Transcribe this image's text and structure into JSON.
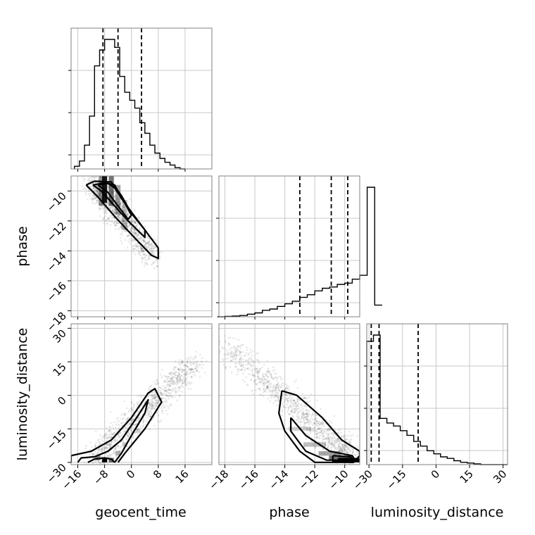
{
  "chart_data": {
    "type": "corner",
    "parameters": [
      "geocent_time",
      "phase",
      "luminosity_distance"
    ],
    "ranges": {
      "geocent_time": [
        -18,
        24
      ],
      "phase": [
        -18.4,
        -9.0
      ],
      "luminosity_distance": [
        -31,
        32
      ]
    },
    "ticks": {
      "geocent_time": [
        -16,
        -8,
        0,
        8,
        16
      ],
      "phase": [
        -18,
        -16,
        -14,
        -12,
        -10
      ],
      "luminosity_distance": [
        -30,
        -15,
        0,
        15,
        30
      ]
    },
    "tick_labels": {
      "geocent_time": [
        "−16",
        "−8",
        "0",
        "8",
        "16"
      ],
      "phase": [
        "−18",
        "−16",
        "−14",
        "−12",
        "−10"
      ],
      "luminosity_distance": [
        "−30",
        "−15",
        "0",
        "15",
        "30"
      ]
    },
    "quantiles": {
      "geocent_time": [
        -8.5,
        -4.0,
        3.0
      ],
      "phase": [
        -13.0,
        -10.9,
        -9.8
      ],
      "luminosity_distance": [
        -29.0,
        -25.5,
        -8.0
      ]
    },
    "histograms": {
      "geocent_time": {
        "bin_width": 1.5,
        "edges_start": -17.0,
        "counts": [
          2,
          6,
          18,
          40,
          78,
          90,
          98,
          98,
          92,
          70,
          58,
          52,
          46,
          35,
          27,
          18,
          12,
          8,
          5,
          3,
          1,
          0
        ]
      },
      "phase": {
        "bin_width": 0.5,
        "edges_start": -18.5,
        "counts": [
          0,
          0.3,
          0.6,
          1,
          2,
          3,
          5,
          6,
          8,
          10,
          12,
          15,
          17,
          20,
          22,
          23,
          25,
          26,
          29,
          32,
          100,
          9
        ]
      },
      "luminosity_distance": {
        "bin_width": 3.0,
        "edges_start": -31.0,
        "counts": [
          80,
          84,
          30,
          27,
          25,
          22,
          19,
          15,
          12,
          9,
          7,
          5,
          4,
          2.5,
          1.5,
          1,
          0.5,
          0,
          0,
          0,
          0
        ]
      }
    },
    "grid": true
  }
}
